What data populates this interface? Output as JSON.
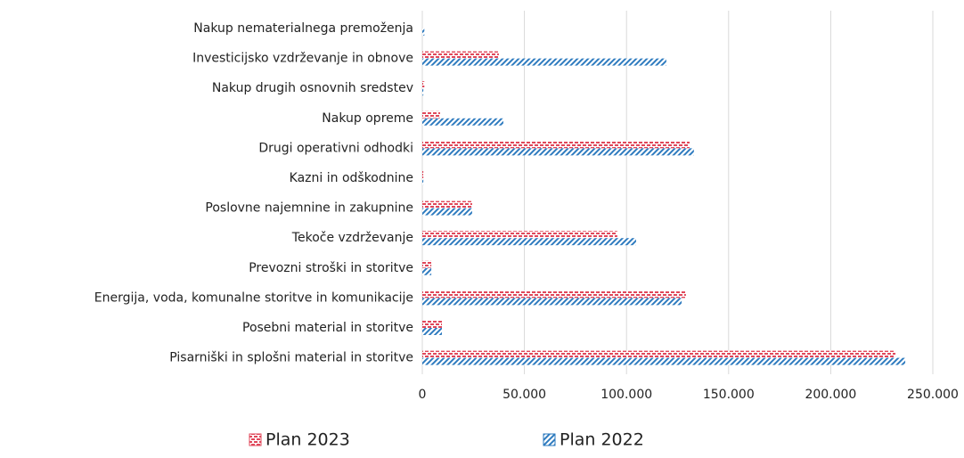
{
  "chart_data": {
    "type": "hbar",
    "categories": [
      "Nakup nematerialnega premoženja",
      "Investicijsko vzdrževanje in obnove",
      "Nakup drugih osnovnih sredstev",
      "Nakup opreme",
      "Drugi operativni odhodki",
      "Kazni in odškodnine",
      "Poslovne najemnine in zakupnine",
      "Tekoče vzdrževanje",
      "Prevozni stroški in storitve",
      "Energija, voda, komunalne storitve in komunikacije",
      "Posebni material in storitve",
      "Pisarniški in splošni material in storitve"
    ],
    "series": [
      {
        "name": "Plan 2023",
        "color": "#e0475a",
        "values": [
          0,
          37500,
          1000,
          8700,
          130900,
          500,
          24400,
          95500,
          4400,
          129100,
          9600,
          231700
        ]
      },
      {
        "name": "Plan 2022",
        "color": "#2e7bbf",
        "values": [
          1000,
          119500,
          500,
          39700,
          133000,
          500,
          24400,
          104700,
          4400,
          127000,
          9600,
          236500
        ]
      }
    ],
    "xlim": [
      0,
      250000
    ],
    "xticks": [
      0,
      {
        "value": 50000,
        "label": "50.000"
      },
      {
        "value": 100000,
        "label": "100.000"
      },
      {
        "value": 150000,
        "label": "150.000"
      },
      {
        "value": 200000,
        "label": "200.000"
      },
      {
        "value": 250000,
        "label": "250.000"
      }
    ],
    "grid": true,
    "legend": "bottom"
  }
}
